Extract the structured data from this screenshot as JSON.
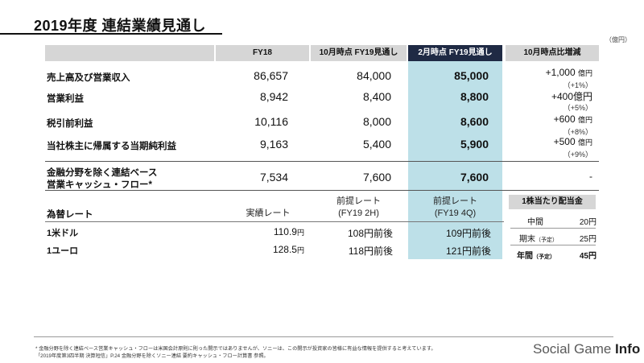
{
  "title": "2019年度 連結業績見通し",
  "unit_note": "（億円）",
  "columns": [
    "FY18",
    "10月時点 FY19見通し",
    "2月時点 FY19見通し",
    "10月時点比増減"
  ],
  "rows": [
    {
      "label": "売上高及び営業収入",
      "fy18": "86,657",
      "oct": "84,000",
      "feb": "85,000",
      "change": "+1,000",
      "change_unit": "億円",
      "pct": "（+1%）"
    },
    {
      "label": "営業利益",
      "fy18": "8,942",
      "oct": "8,400",
      "feb": "8,800",
      "change": "+400億円",
      "change_unit": "",
      "pct": "（+5%）"
    },
    {
      "label": "税引前利益",
      "fy18": "10,116",
      "oct": "8,000",
      "feb": "8,600",
      "change": "+600",
      "change_unit": "億円",
      "pct": "（+8%）"
    },
    {
      "label": "当社株主に帰属する当期純利益",
      "fy18": "9,163",
      "oct": "5,400",
      "feb": "5,900",
      "change": "+500",
      "change_unit": "億円",
      "pct": "（+9%）"
    }
  ],
  "cf_row": {
    "label_line1": "金融分野を除く連結ベース",
    "label_line2": "営業キャッシュ・フロー*",
    "fy18": "7,534",
    "oct": "7,600",
    "feb": "7,600",
    "change": "-"
  },
  "fx": {
    "label": "為替レート",
    "head_actual": "実績レート",
    "head_oct_line1": "前提レート",
    "head_oct_line2": "(FY19 2H)",
    "head_feb_line1": "前提レート",
    "head_feb_line2": "(FY19 4Q)",
    "rows": [
      {
        "label": "1米ドル",
        "actual": "110.9",
        "actual_unit": "円",
        "oct": "108円前後",
        "feb": "109円前後"
      },
      {
        "label": "1ユーロ",
        "actual": "128.5",
        "actual_unit": "円",
        "oct": "118円前後",
        "feb": "121円前後"
      }
    ]
  },
  "dividend": {
    "title": "1株当たり配当金",
    "rows": [
      {
        "label": "中間",
        "value": "20円"
      },
      {
        "label": "期末",
        "sub": "（予定）",
        "value": "25円"
      },
      {
        "label": "年間",
        "sub": "（予定）",
        "value": "45円"
      }
    ]
  },
  "footnote1": "* 金融分野を除く連結ベース営業キャッシュ・フローは米国会計原則に則った開示ではありませんが、ソニーは、この開示が投資家の皆様に有益な情報を提供すると考えています。",
  "footnote2": "「2019年度第3四半期 決算短信」P.24 金融分野を除くソニー連結 要約キャッシュ・フロー計算書 参照。",
  "logo": {
    "part1": "Social Game ",
    "part2": "Info"
  }
}
